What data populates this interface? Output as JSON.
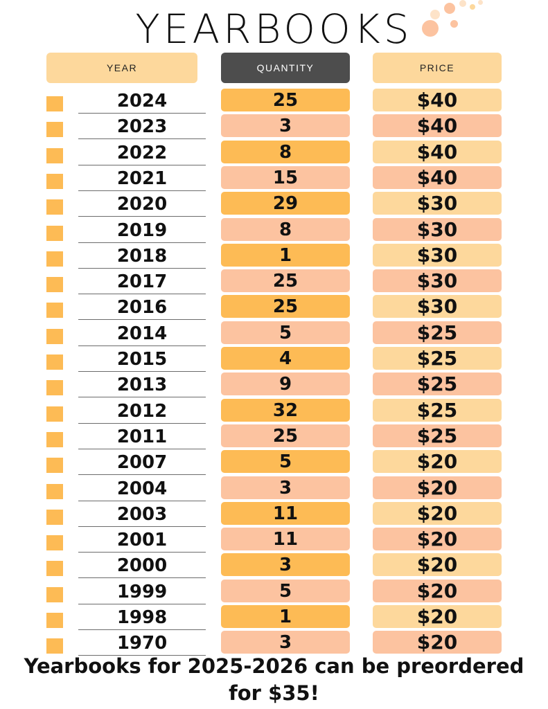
{
  "title": "YEARBOOKS",
  "headers": {
    "year": "YEAR",
    "quantity": "QUANTITY",
    "price": "PRICE"
  },
  "rows": [
    {
      "year": "2024",
      "quantity": "25",
      "price": "$40"
    },
    {
      "year": "2023",
      "quantity": "3",
      "price": "$40"
    },
    {
      "year": "2022",
      "quantity": "8",
      "price": "$40"
    },
    {
      "year": "2021",
      "quantity": "15",
      "price": "$40"
    },
    {
      "year": "2020",
      "quantity": "29",
      "price": "$30"
    },
    {
      "year": "2019",
      "quantity": "8",
      "price": "$30"
    },
    {
      "year": "2018",
      "quantity": "1",
      "price": "$30"
    },
    {
      "year": "2017",
      "quantity": "25",
      "price": "$30"
    },
    {
      "year": "2016",
      "quantity": "25",
      "price": "$30"
    },
    {
      "year": "2014",
      "quantity": "5",
      "price": "$25"
    },
    {
      "year": "2015",
      "quantity": "4",
      "price": "$25"
    },
    {
      "year": "2013",
      "quantity": "9",
      "price": "$25"
    },
    {
      "year": "2012",
      "quantity": "32",
      "price": "$25"
    },
    {
      "year": "2011",
      "quantity": "25",
      "price": "$25"
    },
    {
      "year": "2007",
      "quantity": "5",
      "price": "$20"
    },
    {
      "year": "2004",
      "quantity": "3",
      "price": "$20"
    },
    {
      "year": "2003",
      "quantity": "11",
      "price": "$20"
    },
    {
      "year": "2001",
      "quantity": "11",
      "price": "$20"
    },
    {
      "year": "2000",
      "quantity": "3",
      "price": "$20"
    },
    {
      "year": "1999",
      "quantity": "5",
      "price": "$20"
    },
    {
      "year": "1998",
      "quantity": "1",
      "price": "$20"
    },
    {
      "year": "1970",
      "quantity": "3",
      "price": "$20"
    }
  ],
  "footer": {
    "line1": "Yearbooks for 2025-2026 can be preordered",
    "line2": "for $35!"
  },
  "colors": {
    "accent_orange": "#fdbb55",
    "peach": "#fcc3a0",
    "light_orange": "#fdd89c",
    "header_dark": "#4d4d4d"
  }
}
